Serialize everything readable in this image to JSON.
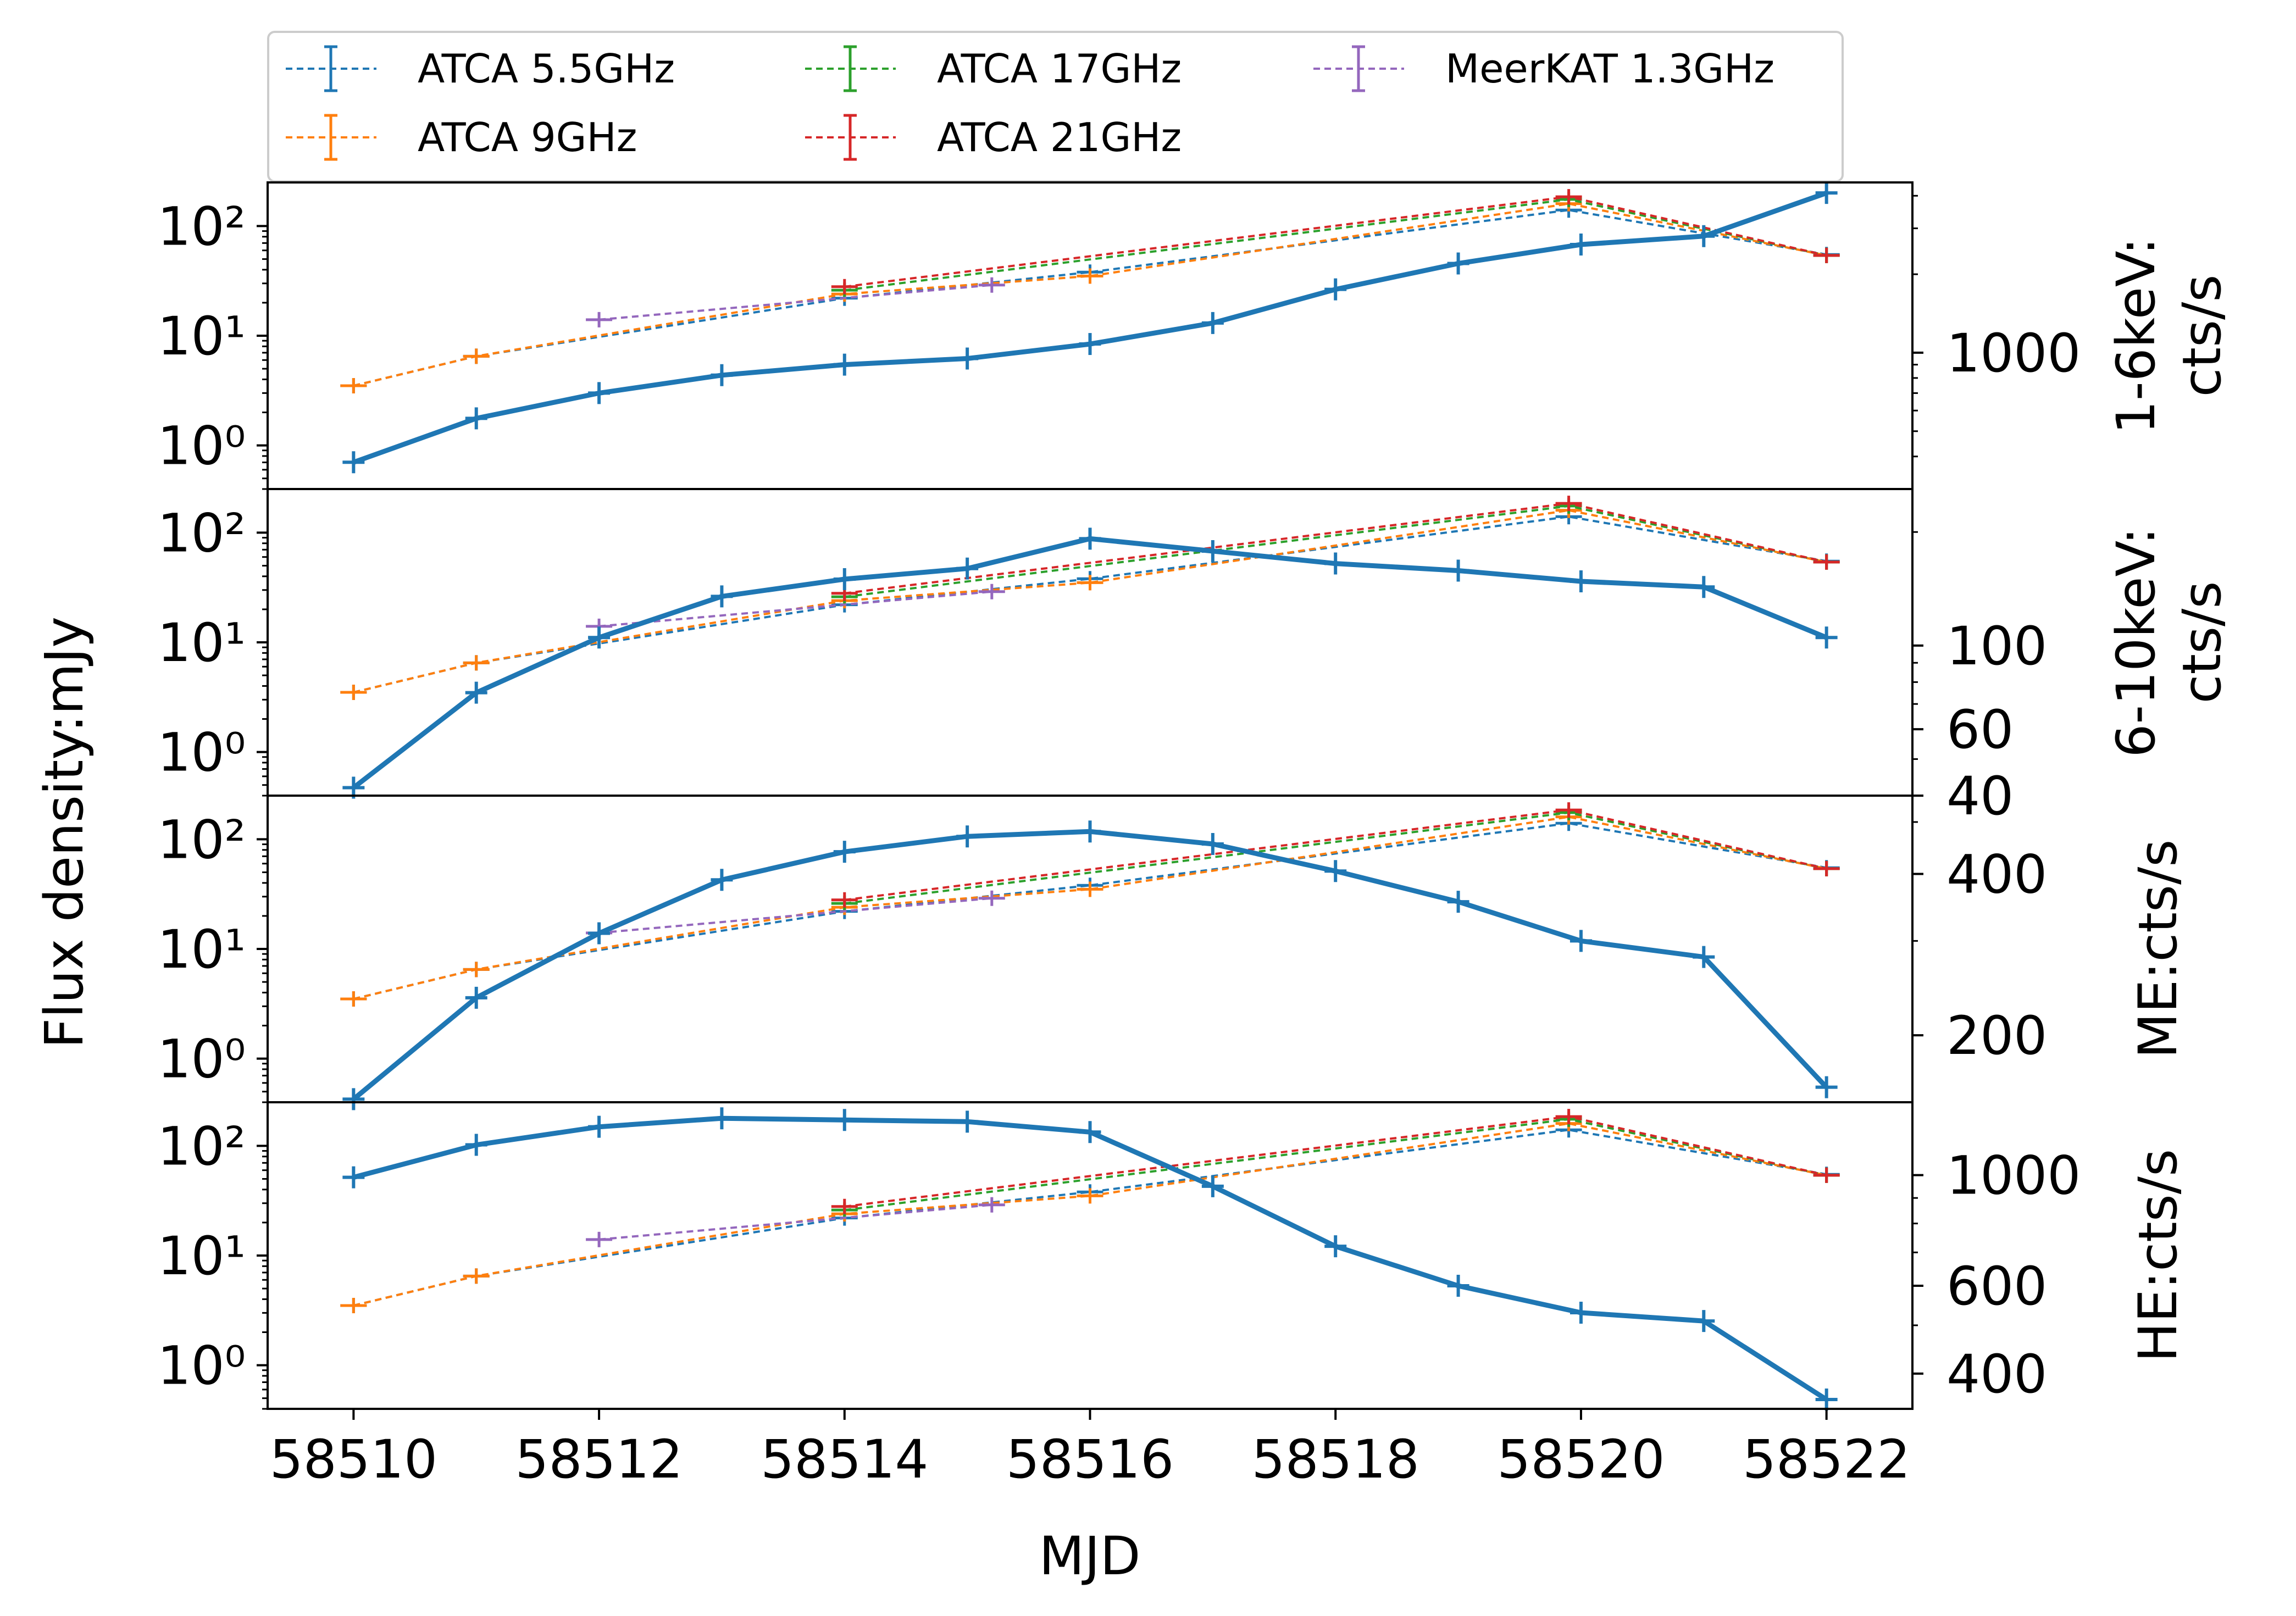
{
  "chart_data": {
    "type": "line",
    "xlabel": "MJD",
    "ylabel": "Flux density:mJy",
    "x_ticks": [
      58510,
      58512,
      58514,
      58516,
      58518,
      58520,
      58522
    ],
    "xlim": [
      58509.3,
      58522.7
    ],
    "left_ylim": [
      0.4,
      250
    ],
    "left_y_ticks": [
      {
        "value": 1,
        "label": "10⁰"
      },
      {
        "value": 10,
        "label": "10¹"
      },
      {
        "value": 100,
        "label": "10²"
      }
    ],
    "legend": {
      "location": "top",
      "entries": [
        {
          "name": "ATCA 5.5GHz",
          "color": "#1f77b4"
        },
        {
          "name": "ATCA 9GHz",
          "color": "#ff7f0e"
        },
        {
          "name": "ATCA 17GHz",
          "color": "#2ca02c"
        },
        {
          "name": "ATCA 21GHz",
          "color": "#d62728"
        },
        {
          "name": "MeerKAT 1.3GHz",
          "color": "#9467bd"
        }
      ]
    },
    "radio_series": [
      {
        "name": "ATCA 5.5GHz",
        "color": "#1f77b4",
        "points": [
          [
            58510,
            3.5
          ],
          [
            58511,
            6.5
          ],
          [
            58514,
            22
          ],
          [
            58516,
            38
          ],
          [
            58519.9,
            140
          ],
          [
            58522,
            55
          ]
        ]
      },
      {
        "name": "ATCA 9GHz",
        "color": "#ff7f0e",
        "points": [
          [
            58510,
            3.5
          ],
          [
            58511,
            6.5
          ],
          [
            58514,
            24
          ],
          [
            58516,
            35
          ],
          [
            58519.9,
            160
          ],
          [
            58522,
            54
          ]
        ]
      },
      {
        "name": "ATCA 17GHz",
        "color": "#2ca02c",
        "points": [
          [
            58514,
            26
          ],
          [
            58519.9,
            175
          ],
          [
            58522,
            54
          ]
        ]
      },
      {
        "name": "ATCA 21GHz",
        "color": "#d62728",
        "points": [
          [
            58514,
            28
          ],
          [
            58519.9,
            185
          ],
          [
            58522,
            54
          ]
        ]
      },
      {
        "name": "MeerKAT 1.3GHz",
        "color": "#9467bd",
        "points": [
          [
            58512,
            14
          ],
          [
            58515.2,
            29
          ]
        ]
      }
    ],
    "panels": [
      {
        "right_label_lines": [
          "1-6keV:",
          "cts/s"
        ],
        "right_ylim": [
          300,
          4500
        ],
        "right_major_ticks": [
          {
            "value": 1000,
            "label": "1000"
          }
        ],
        "right_minor_ticks": [
          400,
          500,
          600,
          700,
          800,
          900,
          2000,
          3000,
          4000
        ],
        "xray": {
          "color": "#1f77b4",
          "x": [
            58510,
            58511,
            58512,
            58513,
            58514,
            58515,
            58516,
            58517,
            58518,
            58519,
            58520,
            58521,
            58522
          ],
          "y": [
            380,
            560,
            700,
            820,
            900,
            950,
            1080,
            1300,
            1750,
            2200,
            2600,
            2800,
            4100
          ]
        }
      },
      {
        "right_label_lines": [
          "6-10keV:",
          "cts/s"
        ],
        "right_ylim": [
          40,
          260
        ],
        "right_major_ticks": [
          {
            "value": 40,
            "label": "40"
          },
          {
            "value": 60,
            "label": "60"
          },
          {
            "value": 100,
            "label": "100"
          }
        ],
        "right_minor_ticks": [
          50,
          70,
          80,
          90,
          200
        ],
        "xray": {
          "color": "#1f77b4",
          "x": [
            58510,
            58511,
            58512,
            58513,
            58514,
            58515,
            58516,
            58517,
            58518,
            58519,
            58520,
            58521,
            58522
          ],
          "y": [
            42,
            75,
            105,
            135,
            150,
            160,
            192,
            178,
            165,
            158,
            148,
            143,
            105
          ]
        }
      },
      {
        "right_label_lines": [
          "ME:cts/s"
        ],
        "right_ylim": [
          150,
          560
        ],
        "right_major_ticks": [
          {
            "value": 200,
            "label": "200"
          },
          {
            "value": 400,
            "label": "400"
          }
        ],
        "right_minor_ticks": [
          300,
          500
        ],
        "xray": {
          "color": "#1f77b4",
          "x": [
            58510,
            58511,
            58512,
            58513,
            58514,
            58515,
            58516,
            58517,
            58518,
            58519,
            58520,
            58521,
            58522
          ],
          "y": [
            152,
            235,
            310,
            390,
            440,
            470,
            480,
            455,
            405,
            355,
            300,
            280,
            160
          ]
        }
      },
      {
        "right_label_lines": [
          "HE:cts/s"
        ],
        "right_ylim": [
          340,
          1400
        ],
        "right_major_ticks": [
          {
            "value": 400,
            "label": "400"
          },
          {
            "value": 600,
            "label": "600"
          },
          {
            "value": 1000,
            "label": "1000"
          }
        ],
        "right_minor_ticks": [
          500,
          700,
          800,
          900
        ],
        "xray": {
          "color": "#1f77b4",
          "x": [
            58510,
            58511,
            58512,
            58513,
            58514,
            58515,
            58516,
            58517,
            58518,
            58519,
            58520,
            58521,
            58522
          ],
          "y": [
            990,
            1150,
            1250,
            1300,
            1290,
            1280,
            1220,
            950,
            720,
            600,
            530,
            510,
            355
          ]
        }
      }
    ]
  }
}
